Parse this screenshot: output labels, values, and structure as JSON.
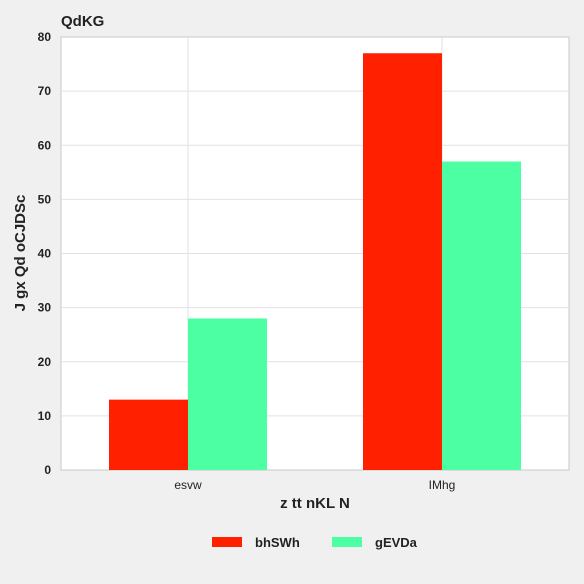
{
  "chart_data": {
    "type": "bar",
    "title": "QdKG",
    "xlabel": "z tt nKL N",
    "ylabel": "J gx Qd oCJDSc",
    "categories": [
      "esvw",
      "IMhg"
    ],
    "series": [
      {
        "name": "bhSWh",
        "color": "#ff2000",
        "values": [
          13,
          77
        ]
      },
      {
        "name": "gEVDa",
        "color": "#4dffa3",
        "values": [
          28,
          57
        ]
      }
    ],
    "ylim": [
      0,
      80
    ],
    "yticks": [
      0,
      10,
      20,
      30,
      40,
      50,
      60,
      70,
      80
    ],
    "grid": true,
    "legend_position": "bottom"
  }
}
